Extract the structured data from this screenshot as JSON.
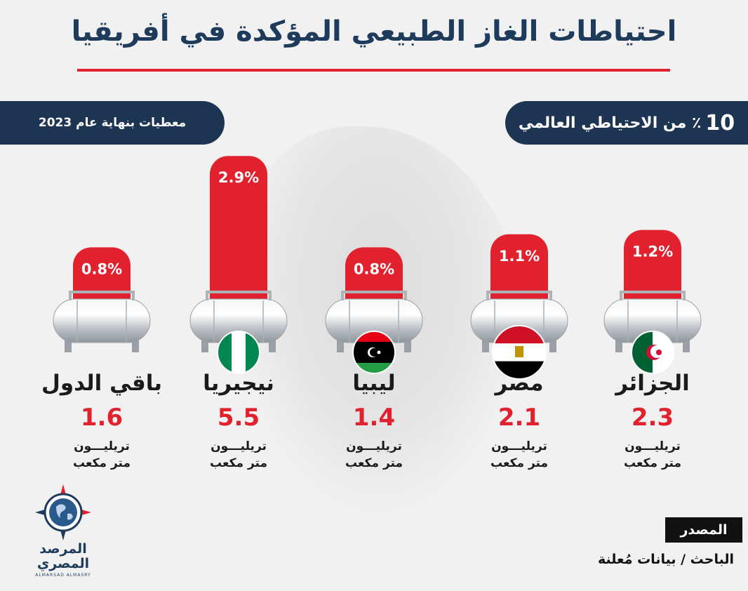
{
  "title": "احتياطات الغاز الطبيعي المؤكدة في أفريقيا",
  "badge_left": "معطيات بنهاية عام 2023",
  "badge_right_number": "10",
  "badge_right_text": "٪ من الاحتياطي العالمي",
  "unit_line1": "تريليـــون",
  "unit_line2": "متر مكعب",
  "source_label": "المصدر",
  "source_text": "الباحث / بيانات مُعلنة",
  "logo_name_line1": "المرصد",
  "logo_name_line2": "المصري",
  "logo_latin": "ALMARSAD ALMASRY",
  "colors": {
    "accent": "#e2212f",
    "navy": "#1d3552",
    "tank": "#c9cdd2"
  },
  "chart_data": {
    "type": "bar",
    "title": "احتياطات الغاز الطبيعي المؤكدة في أفريقيا",
    "categories": [
      "الجزائر",
      "مصر",
      "ليبيا",
      "نيجيريا",
      "باقي الدول"
    ],
    "series": [
      {
        "name": "",
        "values": [
          1.2,
          1.1,
          0.8,
          2.9,
          0.8
        ],
        "labels": [
          "1.2%",
          "1.1%",
          "0.8%",
          "2.9%",
          "0.8%"
        ]
      }
    ],
    "reserves": [
      2.3,
      2.1,
      1.4,
      5.5,
      1.6
    ],
    "reserves_labels": [
      "2.3",
      "2.1",
      "1.4",
      "5.5",
      "1.6"
    ],
    "flags": [
      "algeria-flag",
      "egypt-flag",
      "libya-flag",
      "nigeria-flag",
      ""
    ]
  }
}
